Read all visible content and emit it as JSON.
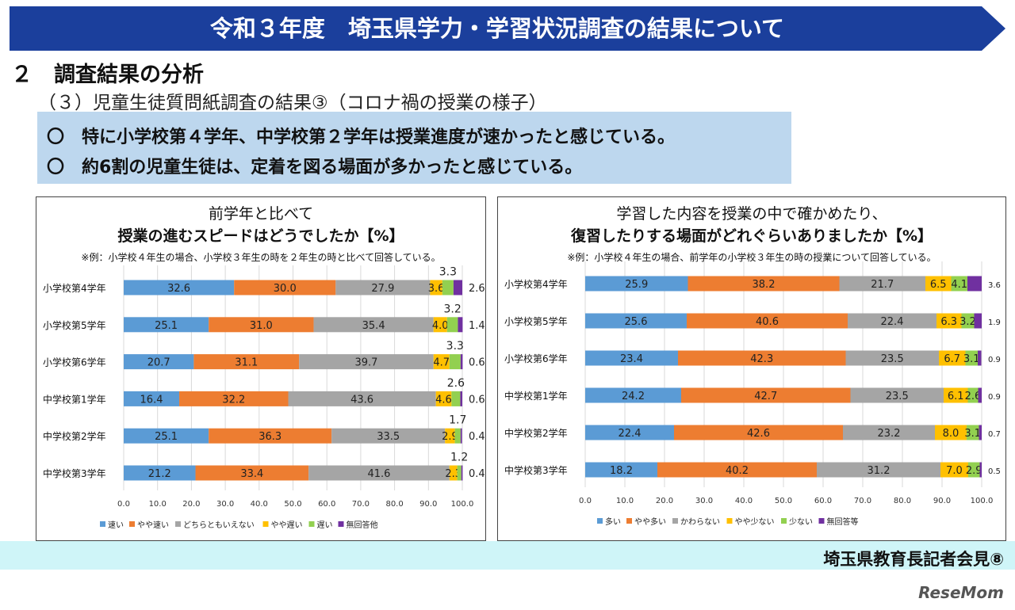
{
  "header": {
    "title": "令和３年度　埼玉県学力・学習状況調査の結果について",
    "section": "２　調査結果の分析",
    "subsection": "（３）児童生徒質問紙調査の結果③（コロナ禍の授業の様子）"
  },
  "summary": {
    "points": [
      "〇　特に小学校第４学年、中学校第２学年は授業進度が速かったと感じている。",
      "〇　約6割の児童生徒は、定着を図る場面が多かったと感じている。"
    ]
  },
  "colors": [
    "#5b9bd5",
    "#ed7d31",
    "#a5a5a5",
    "#ffc000",
    "#92d050",
    "#7030a0"
  ],
  "chart_data": [
    {
      "type": "bar",
      "stacked": true,
      "orientation": "horizontal",
      "title": [
        "前学年と比べて",
        "授業の進むスピードはどうでしたか【%】"
      ],
      "note": "※例：小学校４年生の場合、小学校３年生の時を２年生の時と比べて回答している。",
      "categories": [
        "小学校第4学年",
        "小学校第5学年",
        "小学校第6学年",
        "中学校第1学年",
        "中学校第2学年",
        "中学校第3学年"
      ],
      "series": [
        {
          "name": "速い",
          "values": [
            32.6,
            25.1,
            20.7,
            16.4,
            25.1,
            21.2
          ]
        },
        {
          "name": "やや速い",
          "values": [
            30.0,
            31.0,
            31.1,
            32.2,
            36.3,
            33.4
          ]
        },
        {
          "name": "どちらともいえない",
          "values": [
            27.9,
            35.4,
            39.7,
            43.6,
            33.5,
            41.6
          ]
        },
        {
          "name": "やや遅い",
          "values": [
            3.6,
            4.0,
            4.7,
            4.6,
            2.9,
            2.3
          ]
        },
        {
          "name": "遅い",
          "values": [
            3.3,
            3.2,
            3.3,
            2.6,
            1.7,
            1.2
          ]
        },
        {
          "name": "無回答他",
          "values": [
            2.6,
            1.4,
            0.6,
            0.6,
            0.4,
            0.4
          ]
        }
      ],
      "xlim": [
        0,
        100
      ],
      "xticks": [
        "0.0",
        "10.0",
        "20.0",
        "30.0",
        "40.0",
        "50.0",
        "60.0",
        "70.0",
        "80.0",
        "90.0",
        "100.0"
      ],
      "grid": true,
      "legend": "bottom"
    },
    {
      "type": "bar",
      "stacked": true,
      "orientation": "horizontal",
      "title": [
        "学習した内容を授業の中で確かめたり、",
        "復習したりする場面がどれぐらいありましたか【%】"
      ],
      "note": "※例：小学校４年生の場合、前学年の小学校３年生の時の授業について回答している。",
      "categories": [
        "小学校第4学年",
        "小学校第5学年",
        "小学校第6学年",
        "中学校第1学年",
        "中学校第2学年",
        "中学校第3学年"
      ],
      "series": [
        {
          "name": "多い",
          "values": [
            25.9,
            25.6,
            23.4,
            24.2,
            22.4,
            18.2
          ]
        },
        {
          "name": "やや多い",
          "values": [
            38.2,
            40.6,
            42.3,
            42.7,
            42.6,
            40.2
          ]
        },
        {
          "name": "かわらない",
          "values": [
            21.7,
            22.4,
            23.5,
            23.5,
            23.2,
            31.2
          ]
        },
        {
          "name": "やや少ない",
          "values": [
            6.5,
            6.3,
            6.7,
            6.1,
            8.0,
            7.0
          ]
        },
        {
          "name": "少ない",
          "values": [
            4.1,
            3.2,
            3.1,
            2.6,
            3.1,
            2.9
          ]
        },
        {
          "name": "無回答等",
          "values": [
            3.6,
            1.9,
            0.9,
            0.9,
            0.7,
            0.5
          ]
        }
      ],
      "xlim": [
        0,
        100
      ],
      "xticks": [
        "0.0",
        "10.0",
        "20.0",
        "30.0",
        "40.0",
        "50.0",
        "60.0",
        "70.0",
        "80.0",
        "90.0",
        "100.0"
      ],
      "grid": true,
      "legend": "bottom"
    }
  ],
  "footer": {
    "text": "埼玉県教育長記者会見⑧",
    "logo": "ReseMom"
  }
}
